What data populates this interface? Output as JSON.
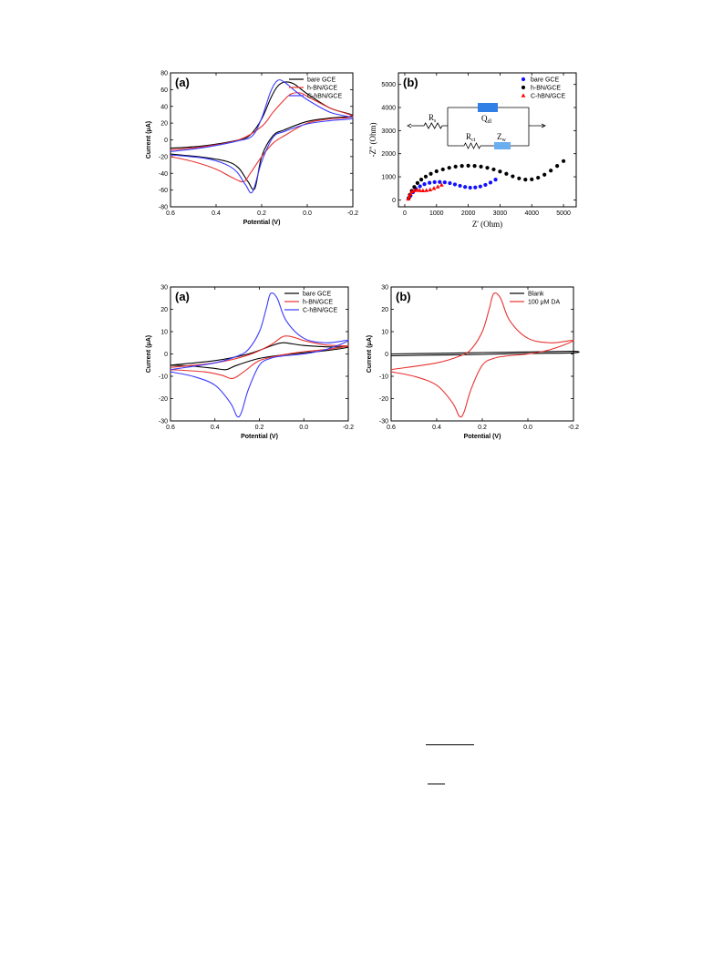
{
  "figures": [
    {
      "id": "fig1",
      "panels": [
        {
          "id": "f1a",
          "panel_label": "(a)",
          "box": [
            187,
            80,
            387,
            227
          ]
        },
        {
          "id": "f1b",
          "panel_label": "(b)",
          "box": [
            437,
            80,
            632,
            227
          ]
        }
      ]
    },
    {
      "id": "fig2",
      "panels": [
        {
          "id": "f2a",
          "panel_label": "(a)",
          "box": [
            187,
            315,
            382,
            462
          ]
        },
        {
          "id": "f2b",
          "panel_label": "(b)",
          "box": [
            429,
            315,
            629,
            462
          ]
        }
      ]
    }
  ],
  "circuit": {
    "rs": "R",
    "rs_sub": "s",
    "qdl": "Q",
    "qdl_sub": "dl",
    "rct": "R",
    "rct_sub": "ct",
    "zw": "Z",
    "zw_sub": "w"
  },
  "chart_data": [
    {
      "id": "f1a",
      "type": "line",
      "xlabel": "Potential (V)",
      "ylabel": "Current (μA)",
      "xlim": [
        0.6,
        -0.2
      ],
      "ylim": [
        -80,
        80
      ],
      "xticks": [
        0.6,
        0.4,
        0.2,
        0.0,
        -0.2
      ],
      "xtick_labels": [
        "0.6",
        "0.4",
        "0.2",
        "0.0",
        "-0.2"
      ],
      "yticks": [
        -80,
        -60,
        -40,
        -20,
        0,
        20,
        40,
        60,
        80
      ],
      "ytick_labels": [
        "-80",
        "-60",
        "-40",
        "-20",
        "0",
        "20",
        "40",
        "60",
        "80"
      ],
      "legend_position": "top-right",
      "series": [
        {
          "name": "bare GCE",
          "color": "#000000",
          "x": [
            0.6,
            0.45,
            0.3,
            0.25,
            0.2,
            0.16,
            0.13,
            0.1,
            0.06,
            0.0,
            -0.1,
            -0.2,
            -0.1,
            0.0,
            0.1,
            0.15,
            0.2,
            0.23,
            0.26,
            0.3,
            0.35,
            0.45,
            0.6
          ],
          "y": [
            -10,
            -7,
            0,
            6,
            25,
            50,
            64,
            69,
            67,
            55,
            38,
            29,
            26,
            22,
            12,
            5,
            -20,
            -58,
            -50,
            -34,
            -26,
            -21,
            -17
          ]
        },
        {
          "name": "h-BN/GCE",
          "color": "#e8322f",
          "x": [
            0.6,
            0.45,
            0.3,
            0.2,
            0.15,
            0.1,
            0.07,
            0.03,
            0.0,
            -0.1,
            -0.2,
            -0.1,
            0.0,
            0.1,
            0.15,
            0.2,
            0.25,
            0.28,
            0.33,
            0.4,
            0.5,
            0.6
          ],
          "y": [
            -12,
            -8,
            0,
            16,
            33,
            48,
            55,
            56,
            52,
            38,
            28,
            25,
            20,
            5,
            -4,
            -20,
            -40,
            -50,
            -45,
            -35,
            -26,
            -20
          ]
        },
        {
          "name": "C-hBN/GCE",
          "color": "#3a3aff",
          "x": [
            0.6,
            0.45,
            0.3,
            0.24,
            0.2,
            0.16,
            0.13,
            0.1,
            0.06,
            0.0,
            -0.1,
            -0.2,
            -0.1,
            0.0,
            0.1,
            0.15,
            0.2,
            0.24,
            0.27,
            0.31,
            0.36,
            0.45,
            0.6
          ],
          "y": [
            -14,
            -9,
            -1,
            5,
            26,
            58,
            71,
            69,
            60,
            48,
            33,
            26,
            23,
            19,
            10,
            3,
            -26,
            -62,
            -54,
            -38,
            -29,
            -22,
            -18
          ]
        }
      ]
    },
    {
      "id": "f1b",
      "type": "scatter",
      "xlabel": "Z' (Ohm)",
      "ylabel": "-Z'' (Ohm)",
      "xlim": [
        -200,
        5400
      ],
      "ylim": [
        -300,
        5500
      ],
      "xticks": [
        0,
        1000,
        2000,
        3000,
        4000,
        5000
      ],
      "xtick_labels": [
        "0",
        "1000",
        "2000",
        "3000",
        "4000",
        "5000"
      ],
      "yticks": [
        0,
        1000,
        2000,
        3000,
        4000,
        5000
      ],
      "ytick_labels": [
        "0",
        "1000",
        "2000",
        "3000",
        "4000",
        "5000"
      ],
      "legend_position": "top-right",
      "series": [
        {
          "name": "bare GCE",
          "color": "#1010ff",
          "marker": "circle",
          "x": [
            120,
            180,
            260,
            360,
            480,
            620,
            780,
            940,
            1100,
            1260,
            1420,
            1580,
            1740,
            1900,
            2060,
            2220,
            2380,
            2540,
            2700,
            2860
          ],
          "y": [
            60,
            180,
            330,
            470,
            590,
            680,
            740,
            770,
            775,
            760,
            725,
            670,
            610,
            560,
            530,
            540,
            580,
            650,
            750,
            880
          ]
        },
        {
          "name": "h-BN/GCE",
          "color": "#000000",
          "marker": "circle",
          "x": [
            120,
            160,
            220,
            300,
            400,
            520,
            660,
            820,
            1000,
            1200,
            1400,
            1600,
            1800,
            2000,
            2200,
            2400,
            2600,
            2800,
            3000,
            3200,
            3400,
            3600,
            3800,
            4000,
            4200,
            4400,
            4600,
            4800,
            5000
          ],
          "y": [
            80,
            220,
            390,
            560,
            730,
            880,
            1010,
            1130,
            1240,
            1320,
            1390,
            1440,
            1470,
            1480,
            1470,
            1440,
            1390,
            1320,
            1230,
            1130,
            1020,
            930,
            880,
            890,
            960,
            1090,
            1270,
            1470,
            1680
          ]
        },
        {
          "name": "C-hBN/GCE",
          "color": "#ff0000",
          "marker": "triangle",
          "x": [
            110,
            140,
            180,
            230,
            300,
            380,
            470,
            570,
            680,
            800,
            920,
            1040,
            1160
          ],
          "y": [
            40,
            140,
            260,
            360,
            410,
            420,
            410,
            400,
            410,
            440,
            500,
            570,
            650
          ]
        }
      ]
    },
    {
      "id": "f2a",
      "type": "line",
      "xlabel": "Potential (V)",
      "ylabel": "Current (μA)",
      "xlim": [
        0.6,
        -0.2
      ],
      "ylim": [
        -30,
        30
      ],
      "xticks": [
        0.6,
        0.4,
        0.2,
        0.0,
        -0.2
      ],
      "xtick_labels": [
        "0.6",
        "0.4",
        "0.2",
        "0.0",
        "-0.2"
      ],
      "yticks": [
        -30,
        -20,
        -10,
        0,
        10,
        20,
        30
      ],
      "ytick_labels": [
        "-30",
        "-20",
        "-10",
        "0",
        "10",
        "20",
        "30"
      ],
      "legend_position": "top-right",
      "series": [
        {
          "name": "bare GCE",
          "color": "#000000",
          "x": [
            0.6,
            0.4,
            0.25,
            0.15,
            0.1,
            0.05,
            0.0,
            -0.1,
            -0.2,
            -0.1,
            0.0,
            0.1,
            0.2,
            0.3,
            0.35,
            0.4,
            0.5,
            0.6
          ],
          "y": [
            -5,
            -3,
            0,
            3.5,
            5,
            4.5,
            3.8,
            3.2,
            3,
            1.5,
            0.5,
            -0.5,
            -2,
            -5,
            -7,
            -6.5,
            -5.5,
            -5
          ]
        },
        {
          "name": "h-BN/GCE",
          "color": "#e8322f",
          "x": [
            0.6,
            0.4,
            0.25,
            0.15,
            0.1,
            0.07,
            0.03,
            0.0,
            -0.1,
            -0.2,
            -0.1,
            0.0,
            0.1,
            0.2,
            0.27,
            0.32,
            0.37,
            0.45,
            0.6
          ],
          "y": [
            -6,
            -4,
            -0.5,
            4,
            7.5,
            8,
            7,
            6,
            4,
            3.5,
            2,
            1,
            -0.5,
            -3,
            -8,
            -11,
            -9.5,
            -8,
            -7
          ]
        },
        {
          "name": "C-hBN/GCE",
          "color": "#3a3aff",
          "x": [
            0.6,
            0.4,
            0.3,
            0.25,
            0.2,
            0.17,
            0.15,
            0.12,
            0.08,
            0.0,
            -0.1,
            -0.2,
            -0.1,
            0.0,
            0.1,
            0.15,
            0.2,
            0.25,
            0.28,
            0.3,
            0.33,
            0.4,
            0.5,
            0.6
          ],
          "y": [
            -7,
            -4,
            -1,
            2,
            10,
            20,
            27,
            25,
            15,
            7,
            5,
            6,
            2,
            0,
            -1,
            -2,
            -5,
            -16,
            -26,
            -28,
            -22,
            -14,
            -10,
            -8
          ]
        }
      ]
    },
    {
      "id": "f2b",
      "type": "line",
      "xlabel": "Potential (V)",
      "ylabel": "Current (μA)",
      "xlim": [
        0.6,
        -0.2
      ],
      "ylim": [
        -30,
        30
      ],
      "xticks": [
        0.6,
        0.4,
        0.2,
        0.0,
        -0.2
      ],
      "xtick_labels": [
        "0.6",
        "0.4",
        "0.2",
        "0.0",
        "-0.2"
      ],
      "yticks": [
        -30,
        -20,
        -10,
        0,
        10,
        20,
        30
      ],
      "ytick_labels": [
        "-30",
        "-20",
        "-10",
        "0",
        "10",
        "20",
        "30"
      ],
      "legend_position": "top-right",
      "series": [
        {
          "name": "Blank",
          "color": "#000000",
          "x": [
            0.6,
            0.4,
            0.2,
            0.0,
            -0.2,
            -0.2,
            0.0,
            0.2,
            0.4,
            0.6
          ],
          "y": [
            0.0,
            0.3,
            0.6,
            0.9,
            1.2,
            0.5,
            0.2,
            -0.2,
            -0.5,
            -0.8
          ]
        },
        {
          "name": "100 μM DA",
          "color": "#e8322f",
          "x": [
            0.6,
            0.4,
            0.3,
            0.25,
            0.2,
            0.17,
            0.15,
            0.12,
            0.08,
            0.0,
            -0.1,
            -0.2,
            -0.1,
            0.0,
            0.1,
            0.15,
            0.2,
            0.25,
            0.28,
            0.3,
            0.33,
            0.4,
            0.5,
            0.6
          ],
          "y": [
            -7,
            -4,
            -1,
            2,
            10,
            20,
            27,
            25,
            15,
            7,
            5,
            6,
            2,
            0,
            -1,
            -2,
            -5,
            -16,
            -26,
            -28,
            -22,
            -14,
            -10,
            -8
          ]
        }
      ]
    }
  ]
}
